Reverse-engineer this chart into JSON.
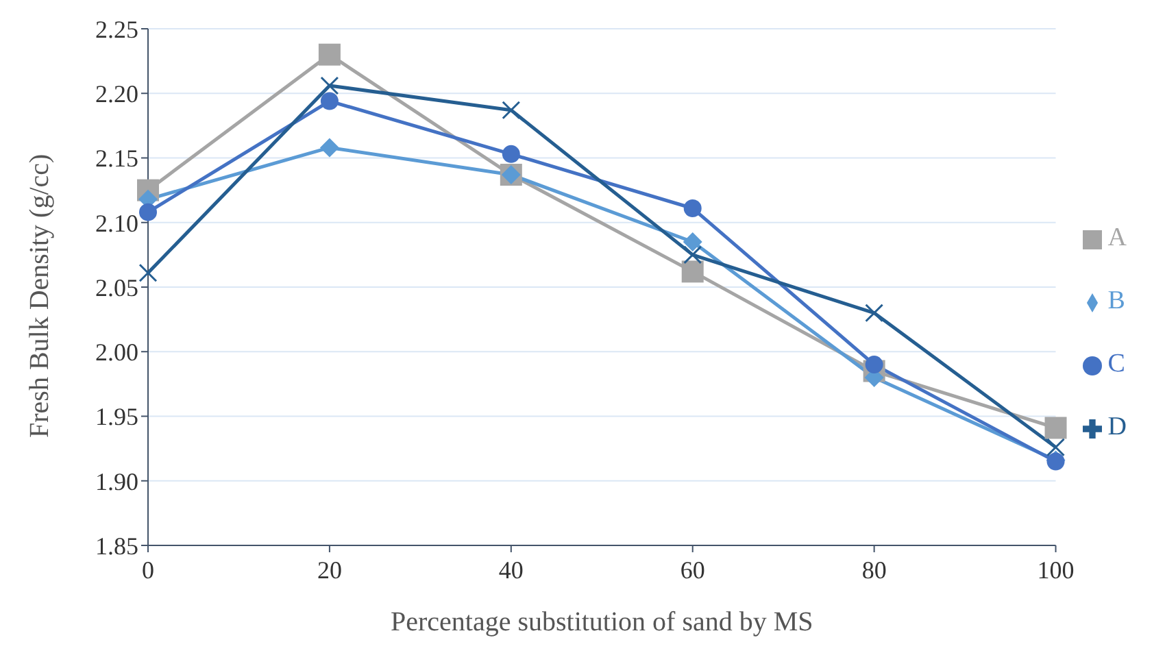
{
  "chart_data": {
    "type": "line",
    "xlabel": "Percentage substitution of sand by MS",
    "ylabel": "Fresh Bulk Density (g/cc)",
    "x": [
      0,
      20,
      40,
      60,
      80,
      100
    ],
    "series": [
      {
        "name": "A",
        "color": "#a5a5a5",
        "marker": "square",
        "values": [
          2.125,
          2.23,
          2.137,
          2.062,
          1.985,
          1.941
        ]
      },
      {
        "name": "B",
        "color": "#5b9bd5",
        "marker": "diamond",
        "values": [
          2.118,
          2.158,
          2.137,
          2.085,
          1.98,
          1.916
        ]
      },
      {
        "name": "C",
        "color": "#4472c4",
        "marker": "circle",
        "values": [
          2.108,
          2.194,
          2.153,
          2.111,
          1.99,
          1.915
        ]
      },
      {
        "name": "D",
        "color": "#255e91",
        "marker": "cross",
        "values": [
          2.061,
          2.206,
          2.187,
          2.075,
          2.03,
          1.926
        ]
      }
    ],
    "xlim": [
      0,
      100
    ],
    "xticks": [
      0,
      20,
      40,
      60,
      80,
      100
    ],
    "ylim": [
      1.85,
      2.25
    ],
    "yticks": [
      {
        "value": 1.85,
        "label": "1.85"
      },
      {
        "value": 1.9,
        "label": "1.90"
      },
      {
        "value": 1.95,
        "label": "1.95"
      },
      {
        "value": 2.0,
        "label": "2.00"
      },
      {
        "value": 2.05,
        "label": "2.05"
      },
      {
        "value": 2.1,
        "label": "2.10"
      },
      {
        "value": 2.15,
        "label": "2.15"
      },
      {
        "value": 2.2,
        "label": "2.20"
      },
      {
        "value": 2.25,
        "label": "2.25"
      }
    ],
    "grid": "y",
    "legend": "right"
  }
}
